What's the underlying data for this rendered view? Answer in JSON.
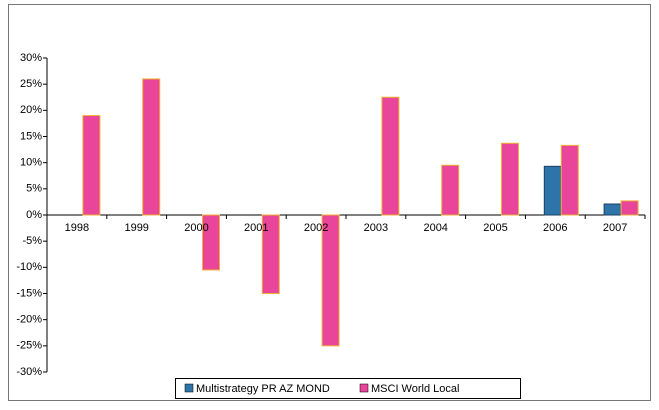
{
  "chart_data": {
    "type": "bar",
    "categories": [
      "1998",
      "1999",
      "2000",
      "2001",
      "2002",
      "2003",
      "2004",
      "2005",
      "2006",
      "2007"
    ],
    "series": [
      {
        "name": "Multistrategy PR  AZ MOND",
        "color": "#2f74a8",
        "values": [
          null,
          null,
          null,
          null,
          null,
          null,
          null,
          null,
          9.3,
          2.1
        ]
      },
      {
        "name": "MSCI World Local",
        "color": "#e8459b",
        "values": [
          19,
          26,
          -10.5,
          -15,
          -25,
          22.5,
          9.5,
          13.7,
          13.3,
          2.7
        ]
      }
    ],
    "ylim": [
      -30,
      30
    ],
    "yticks": [
      {
        "value": -30,
        "label": "-30%"
      },
      {
        "value": -25,
        "label": "-25%"
      },
      {
        "value": -20,
        "label": "-20%"
      },
      {
        "value": -15,
        "label": "-15%"
      },
      {
        "value": -10,
        "label": "-10%"
      },
      {
        "value": -5,
        "label": "-5%"
      },
      {
        "value": 0,
        "label": "0%"
      },
      {
        "value": 5,
        "label": "5%"
      },
      {
        "value": 10,
        "label": "10%"
      },
      {
        "value": 15,
        "label": "15%"
      },
      {
        "value": 20,
        "label": "20%"
      },
      {
        "value": 25,
        "label": "25%"
      },
      {
        "value": 30,
        "label": "30%"
      }
    ],
    "grid": false,
    "legend": "bottom"
  }
}
